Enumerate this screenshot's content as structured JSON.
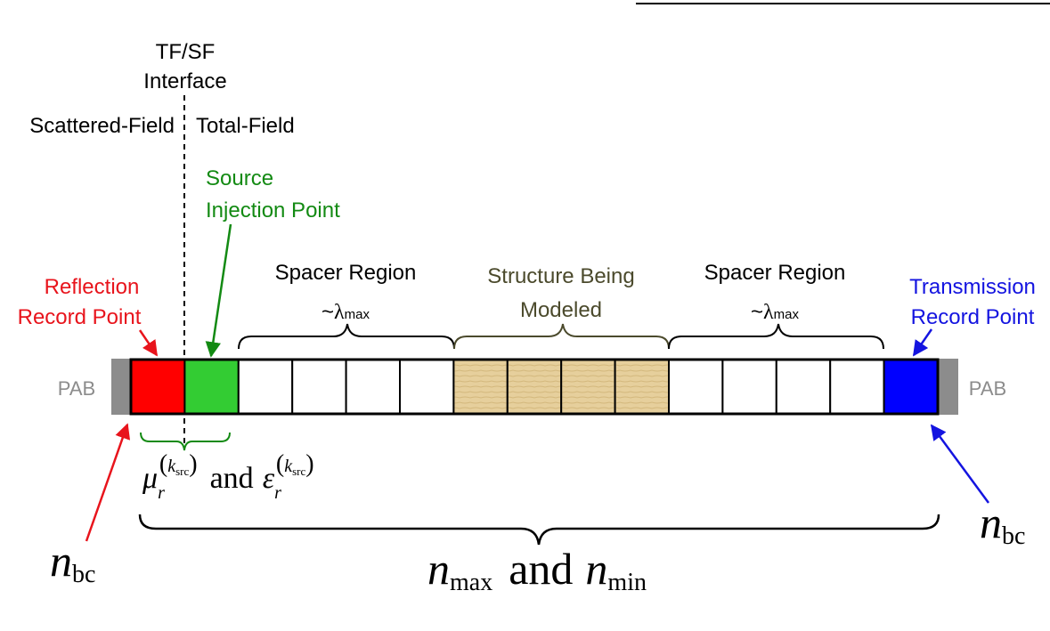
{
  "interface": {
    "title_line1": "TF/SF",
    "title_line2": "Interface",
    "left_label": "Scattered-Field",
    "right_label": "Total-Field"
  },
  "source": {
    "line1": "Source",
    "line2": "Injection Point",
    "color": "#138a13"
  },
  "reflection": {
    "line1": "Reflection",
    "line2": "Record Point",
    "color": "#e8141c"
  },
  "transmission": {
    "line1": "Transmission",
    "line2": "Record Point",
    "color": "#1414e0"
  },
  "spacer_left": {
    "title": "Spacer Region",
    "tilde": "~",
    "lambda": "λ",
    "sub": "max"
  },
  "structure": {
    "line1": "Structure Being",
    "line2": "Modeled",
    "color": "#4b4a2c"
  },
  "spacer_right": {
    "title": "Spacer Region",
    "tilde": "~",
    "lambda": "λ",
    "sub": "max"
  },
  "pab": {
    "left": "PAB",
    "right": "PAB",
    "color": "#8c8c8c"
  },
  "cells": [
    {
      "kind": "reflection",
      "color": "#ff0000"
    },
    {
      "kind": "source",
      "color": "#33cc33"
    },
    {
      "kind": "spacer",
      "color": "#ffffff"
    },
    {
      "kind": "spacer",
      "color": "#ffffff"
    },
    {
      "kind": "spacer",
      "color": "#ffffff"
    },
    {
      "kind": "spacer",
      "color": "#ffffff"
    },
    {
      "kind": "structure",
      "color": "#e6cf9c"
    },
    {
      "kind": "structure",
      "color": "#e6cf9c"
    },
    {
      "kind": "structure",
      "color": "#e6cf9c"
    },
    {
      "kind": "structure",
      "color": "#e6cf9c"
    },
    {
      "kind": "spacer",
      "color": "#ffffff"
    },
    {
      "kind": "spacer",
      "color": "#ffffff"
    },
    {
      "kind": "spacer",
      "color": "#ffffff"
    },
    {
      "kind": "spacer",
      "color": "#ffffff"
    },
    {
      "kind": "transmission",
      "color": "#0000ff"
    }
  ],
  "source_material": {
    "mu": "μ",
    "r1": "r",
    "k1": "k",
    "src1": "src",
    "and": "and",
    "eps": "ε",
    "r2": "r",
    "k2": "k",
    "src2": "src"
  },
  "nbc_left": {
    "n": "n",
    "sub": "bc"
  },
  "nbc_right": {
    "n": "n",
    "sub": "bc"
  },
  "nmaxmin": {
    "n1": "n",
    "sub1": "max",
    "and": "and",
    "n2": "n",
    "sub2": "min"
  }
}
